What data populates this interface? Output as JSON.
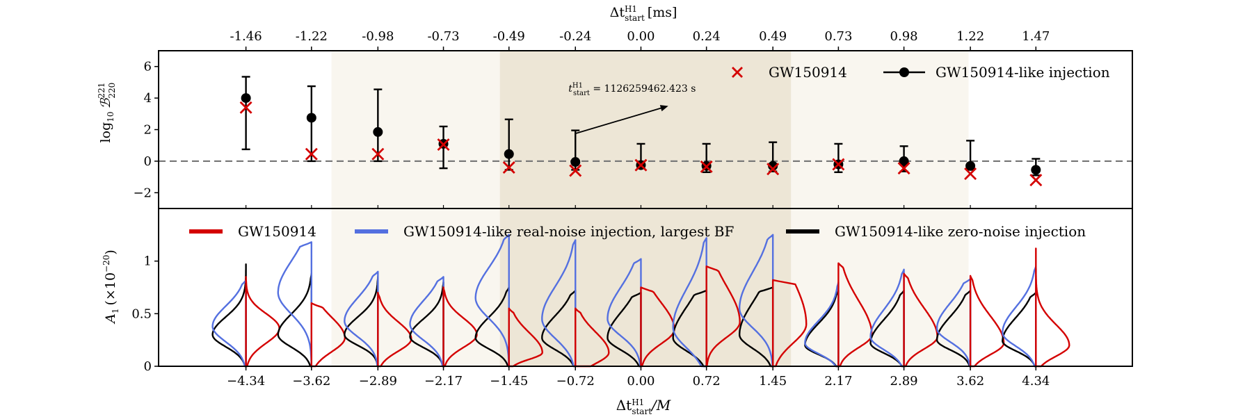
{
  "colors": {
    "red": "#d40000",
    "blue": "#5470e0",
    "black": "#000000",
    "band_light": "#f9f6ef",
    "band_dark": "#ede6d6",
    "dashed": "#7a7a7a"
  },
  "chart_data": [
    {
      "panel": "top",
      "type": "scatter",
      "top_axis": {
        "label": "Δt",
        "label_sup": "H1",
        "label_sub": "start",
        "label_unit": "[ms]",
        "ticks": [
          "-1.46",
          "-1.22",
          "-0.98",
          "-0.73",
          "-0.49",
          "-0.24",
          "0.00",
          "0.24",
          "0.49",
          "0.73",
          "0.98",
          "1.22",
          "1.47"
        ]
      },
      "ylabel": "log",
      "ylabel_sub": "10",
      "ylabel_sym": "ℬ",
      "ylabel_sup": "221",
      "ylabel_sub2": "220",
      "ylim": [
        -3,
        7
      ],
      "yticks": [
        -2,
        0,
        2,
        4,
        6
      ],
      "x": [
        -4.34,
        -3.62,
        -2.89,
        -2.17,
        -1.45,
        -0.72,
        0.0,
        0.72,
        1.45,
        2.17,
        2.89,
        3.62,
        4.34
      ],
      "xlim": [
        -5.3,
        5.4
      ],
      "reference_line": 0,
      "grid": false,
      "legend_position": "top-right",
      "series": [
        {
          "name": "GW150914",
          "marker": "x",
          "color": "#d40000",
          "values": [
            3.4,
            0.45,
            0.45,
            1.05,
            -0.4,
            -0.6,
            -0.25,
            -0.35,
            -0.5,
            -0.2,
            -0.45,
            -0.8,
            -1.2
          ]
        },
        {
          "name": "GW150914-like injection",
          "marker": "circle",
          "color": "#000000",
          "values": [
            4.0,
            2.75,
            1.85,
            1.1,
            0.45,
            -0.05,
            -0.25,
            -0.3,
            -0.3,
            -0.2,
            0.0,
            -0.3,
            -0.55
          ],
          "err_low": [
            0.75,
            0.0,
            0.0,
            -0.45,
            -0.55,
            -0.55,
            -0.3,
            -0.7,
            -0.65,
            -0.7,
            -0.65,
            -0.55,
            -0.9
          ],
          "err_high": [
            5.35,
            4.75,
            4.55,
            2.2,
            2.65,
            1.95,
            1.1,
            1.1,
            1.2,
            1.1,
            0.95,
            1.3,
            0.15
          ]
        }
      ],
      "annotation": {
        "text_main": "t",
        "text_sup": "H1",
        "text_sub": "start",
        "text_value": " = 1126259462.423 s",
        "arrow_from_x": -0.72,
        "arrow_from_y": 1.75,
        "arrow_to_x": 0.3,
        "arrow_to_y": 3.5
      },
      "bands": [
        {
          "from": -3.4,
          "to": -1.55,
          "shade": "light"
        },
        {
          "from": -1.55,
          "to": 1.65,
          "shade": "dark"
        },
        {
          "from": 1.65,
          "to": 3.6,
          "shade": "light"
        }
      ]
    },
    {
      "panel": "bottom",
      "type": "violin",
      "ylabel": "A",
      "ylabel_sub": "1",
      "ylabel_rest": "(×10",
      "ylabel_sup": "−20",
      "ylabel_close": ")",
      "ylim": [
        0,
        1.5
      ],
      "yticks": [
        "0",
        "0.5",
        "1"
      ],
      "ytick_values": [
        0,
        0.5,
        1.0
      ],
      "xlabel": "Δt",
      "xlabel_sup": "H1",
      "xlabel_sub": "start",
      "xlabel_rest": "/M",
      "x_tick_labels": [
        "−4.34",
        "−3.62",
        "−2.89",
        "−2.17",
        "−1.45",
        "−0.72",
        "0.00",
        "0.72",
        "1.45",
        "2.17",
        "2.89",
        "3.62",
        "4.34"
      ],
      "legend_position": "top",
      "series": [
        {
          "name": "GW150914",
          "color": "#d40000",
          "side": "right",
          "peak": [
            0.36,
            0.27,
            0.26,
            0.3,
            0.13,
            0.13,
            0.35,
            0.42,
            0.4,
            0.3,
            0.28,
            0.22,
            0.2
          ],
          "top": [
            0.85,
            0.6,
            0.7,
            0.75,
            0.55,
            0.55,
            0.75,
            0.95,
            0.82,
            0.98,
            0.88,
            0.86,
            1.12
          ],
          "spread": [
            0.14,
            0.15,
            0.13,
            0.13,
            0.1,
            0.13,
            0.17,
            0.2,
            0.25,
            0.18,
            0.16,
            0.15,
            0.13
          ],
          "skew": [
            0.0,
            0.3,
            0.25,
            0.2,
            0.9,
            0.5,
            0.5,
            0.7,
            0.7,
            0.8,
            0.7,
            0.7,
            0.5
          ]
        },
        {
          "name": "GW150914-like real-noise injection, largest BF",
          "color": "#5470e0",
          "side": "left",
          "peak": [
            0.38,
            0.7,
            0.43,
            0.4,
            0.65,
            0.45,
            0.45,
            0.37,
            0.55,
            0.22,
            0.28,
            0.36,
            0.32
          ],
          "top": [
            0.82,
            1.18,
            0.9,
            0.85,
            1.25,
            1.2,
            1.02,
            1.22,
            1.25,
            0.8,
            0.92,
            0.83,
            0.95
          ],
          "spread": [
            0.16,
            0.23,
            0.17,
            0.17,
            0.22,
            0.22,
            0.2,
            0.24,
            0.23,
            0.13,
            0.16,
            0.16,
            0.16
          ],
          "skew": [
            0.2,
            0.3,
            0.3,
            0.3,
            0.3,
            0.4,
            0.5,
            0.5,
            0.5,
            0.6,
            0.6,
            0.5,
            0.5
          ]
        },
        {
          "name": "GW150914-like zero-noise injection",
          "color": "#000000",
          "side": "left",
          "peak": [
            0.3,
            0.3,
            0.3,
            0.28,
            0.27,
            0.27,
            0.27,
            0.27,
            0.3,
            0.2,
            0.22,
            0.25,
            0.24
          ],
          "top": [
            0.97,
            0.88,
            0.85,
            0.8,
            0.75,
            0.72,
            0.7,
            0.72,
            0.75,
            0.72,
            0.72,
            0.72,
            0.7
          ],
          "spread": [
            0.13,
            0.14,
            0.12,
            0.12,
            0.13,
            0.14,
            0.15,
            0.17,
            0.18,
            0.12,
            0.13,
            0.13,
            0.13
          ],
          "skew": [
            0.3,
            0.4,
            0.4,
            0.4,
            0.5,
            0.5,
            0.6,
            0.7,
            0.7,
            0.7,
            0.7,
            0.7,
            0.7
          ]
        }
      ]
    }
  ]
}
